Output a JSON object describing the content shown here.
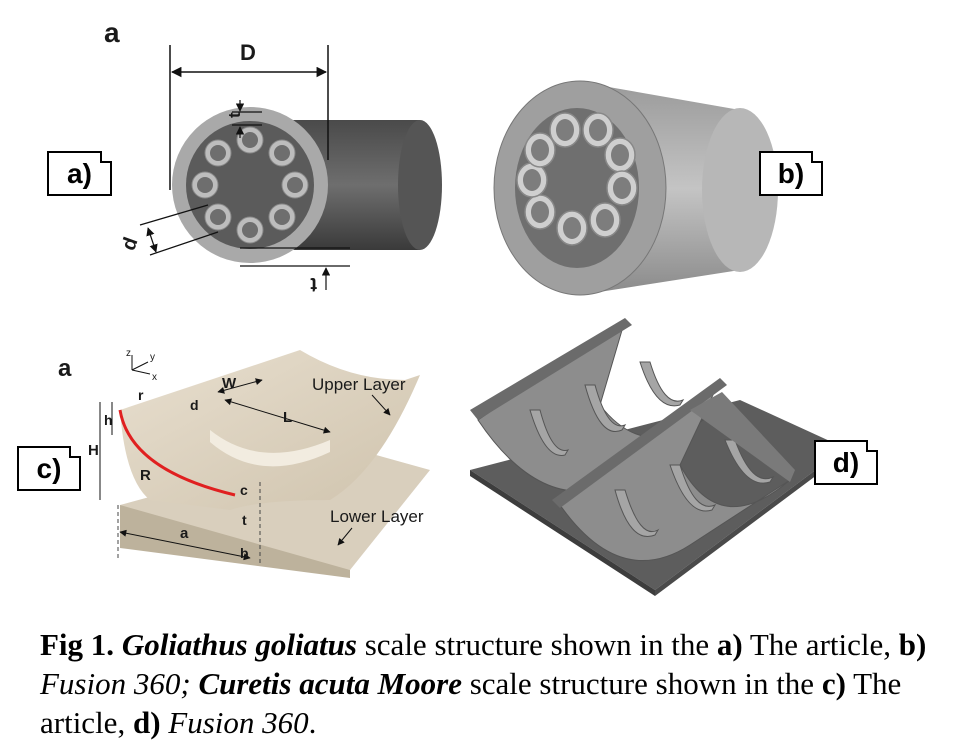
{
  "panel_labels": {
    "a": "a)",
    "b": "b)",
    "c": "c)",
    "d": "d)"
  },
  "diagram_a_text": {
    "letter": "a",
    "D": "D",
    "t_top": "t",
    "d": "d",
    "t_bottom": "t"
  },
  "diagram_c_text": {
    "letter": "a",
    "upper_layer": "Upper Layer",
    "lower_layer": "Lower Layer",
    "W": "W",
    "L": "L",
    "d": "d",
    "r": "r",
    "h": "h",
    "H": "H",
    "R": "R",
    "c": "c",
    "t": "t",
    "a": "a",
    "b": "b",
    "axis_z": "z",
    "axis_y": "y",
    "axis_x": "x"
  },
  "caption": {
    "fig": "Fig 1.",
    "species1": "Goliathus goliatus",
    "text1": " scale structure shown in the ",
    "a_label": "a)",
    "text2": " The article, ",
    "b_label": "b)",
    "fusion1": " Fusion 360;",
    "space1": " ",
    "species2": "Curetis acuta Moore",
    "text3": " scale structure shown in the ",
    "c_label": "c)",
    "text4": " The article, ",
    "d_label": "d)",
    "fusion2": " Fusion 360",
    "end": "."
  }
}
